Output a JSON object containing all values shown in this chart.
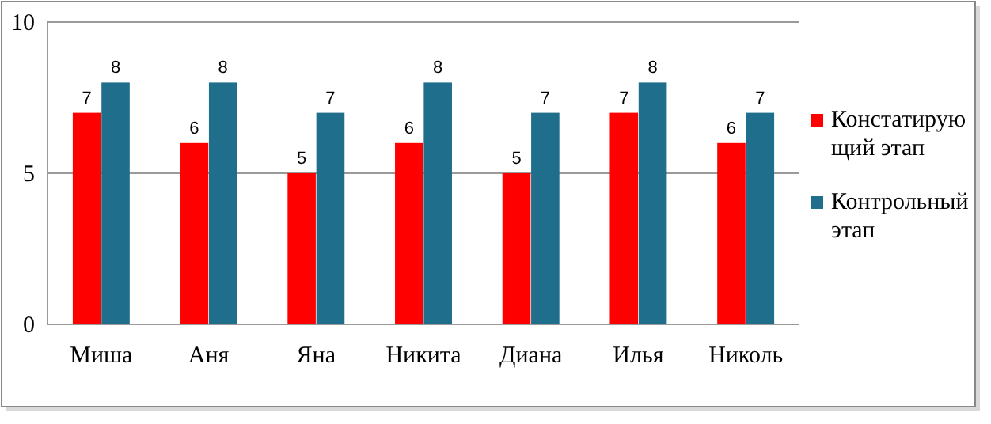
{
  "chart_data": {
    "type": "bar",
    "categories": [
      "Миша",
      "Аня",
      "Яна",
      "Никита",
      "Диана",
      "Илья",
      "Николь"
    ],
    "series": [
      {
        "name": "Констатирующий этап",
        "color": "#ff0000",
        "values": [
          7,
          6,
          5,
          6,
          5,
          7,
          6
        ]
      },
      {
        "name": "Контрольный этап",
        "color": "#1f6e8c",
        "values": [
          8,
          8,
          7,
          8,
          7,
          8,
          7
        ]
      }
    ],
    "ylim": [
      0,
      10
    ],
    "yticks": [
      0,
      5,
      10
    ],
    "grid": "y",
    "legend": "right",
    "data_labels": true
  }
}
